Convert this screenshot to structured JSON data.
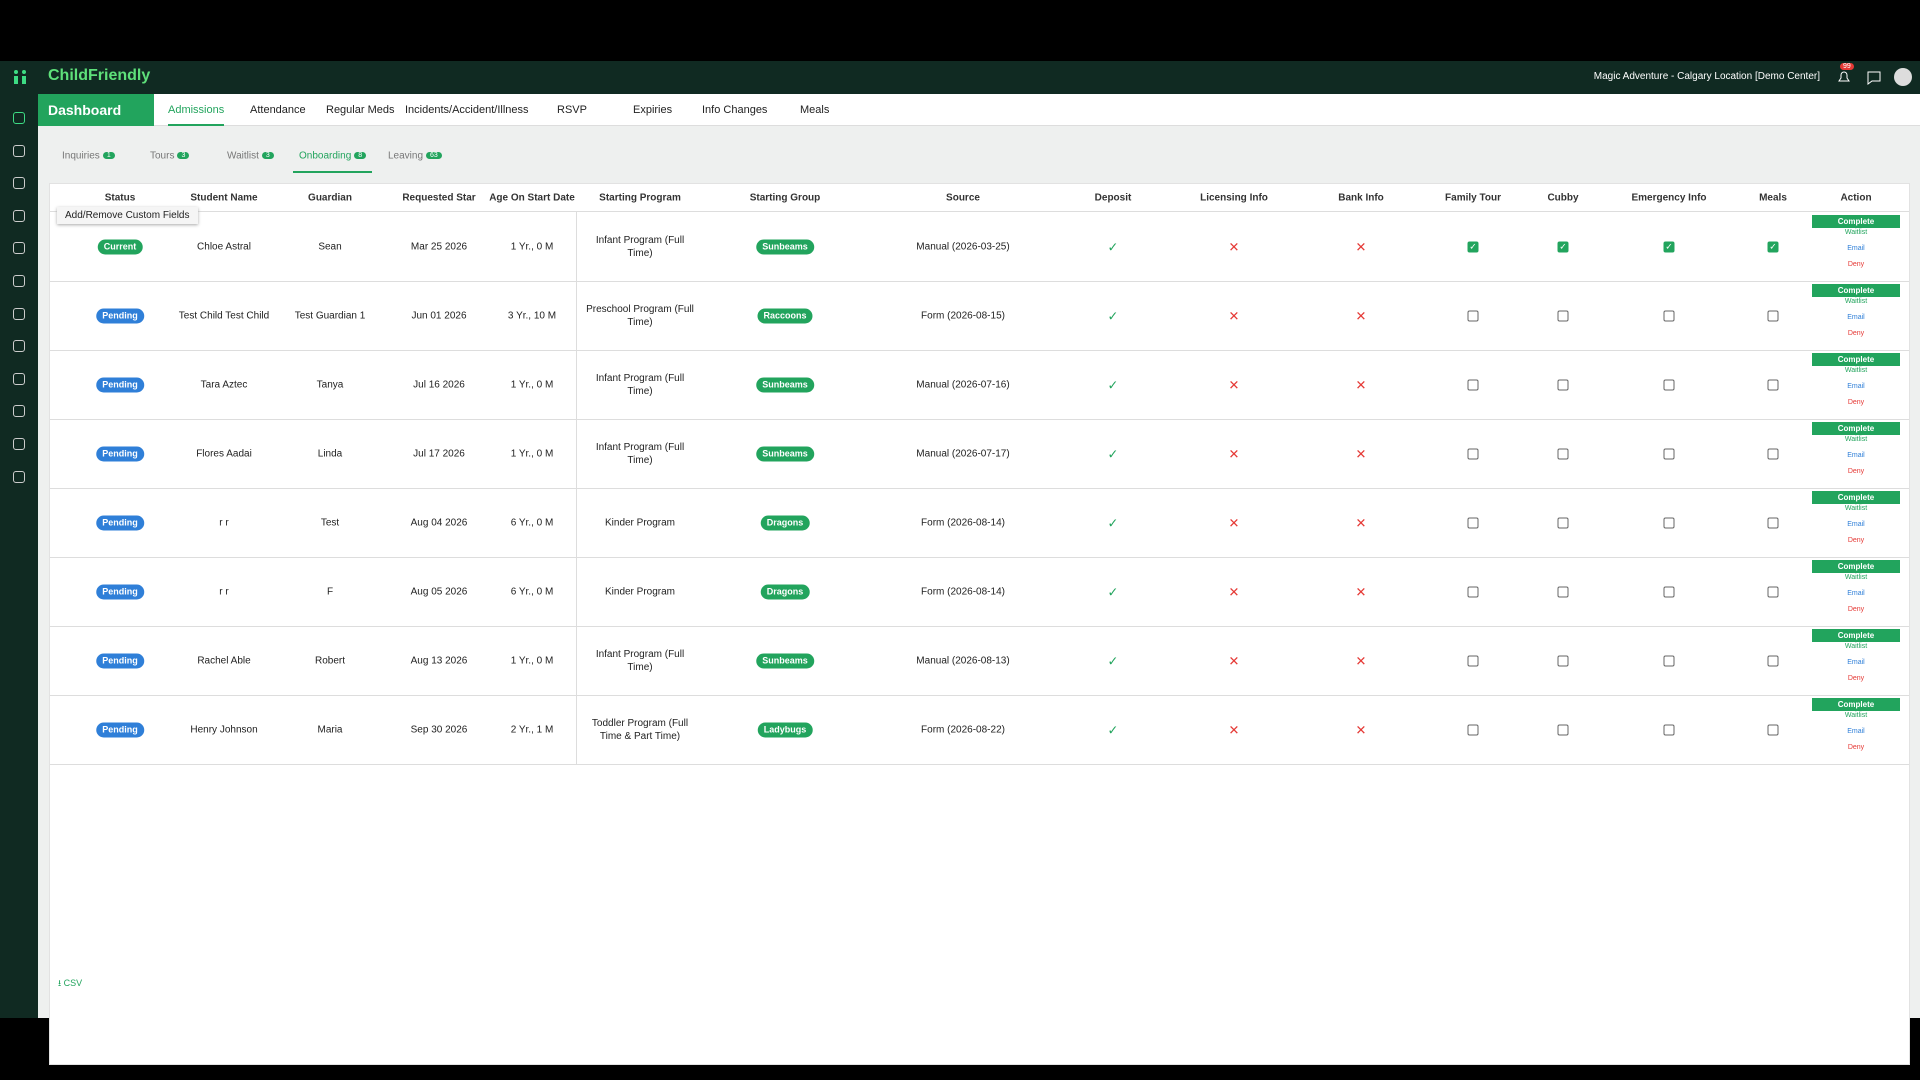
{
  "header": {
    "brand": "ChildFriendly",
    "location": "Magic Adventure - Calgary Location [Demo Center]",
    "notifications": "99"
  },
  "nav": {
    "dashboard": "Dashboard",
    "tabs": [
      "Admissions",
      "Attendance",
      "Regular Meds",
      "Incidents/Accident/Illness",
      "RSVP",
      "Expiries",
      "Info Changes",
      "Meals"
    ],
    "active": 0
  },
  "subtabs": {
    "items": [
      {
        "label": "Inquiries",
        "count": "1"
      },
      {
        "label": "Tours",
        "count": "3"
      },
      {
        "label": "Waitlist",
        "count": "3"
      },
      {
        "label": "Onboarding",
        "count": "8"
      },
      {
        "label": "Leaving",
        "count": "63"
      }
    ],
    "active": 3
  },
  "tooltip": "Add/Remove Custom Fields",
  "table": {
    "columns": [
      "Status",
      "Student Name",
      "Guardian",
      "Requested Star",
      "Age On Start Date",
      "Starting Program",
      "Starting Group",
      "Source",
      "Deposit",
      "Licensing Info",
      "Bank Info",
      "Family Tour",
      "Cubby",
      "Emergency Info",
      "Meals",
      "Action"
    ],
    "actions": [
      "Complete",
      "Waitlist",
      "Email",
      "Deny"
    ],
    "rows": [
      {
        "status": "Current",
        "badge_color": "#22a45d",
        "student": "Chloe Astral",
        "guardian": "Sean",
        "start": "Mar 25 2026",
        "age": "1 Yr., 0 M",
        "program": "Infant Program (Full Time)",
        "group": "Sunbeams",
        "source": "Manual (2026-03-25)",
        "deposit": true,
        "licensing": false,
        "bank": false,
        "family_tour": true,
        "cubby": true,
        "emergency": true,
        "meals": true
      },
      {
        "status": "Pending",
        "badge_color": "#2f7fd8",
        "student": "Test Child Test Child",
        "guardian": "Test Guardian 1",
        "start": "Jun 01 2026",
        "age": "3 Yr., 10 M",
        "program": "Preschool Program (Full Time)",
        "group": "Raccoons",
        "source": "Form (2026-08-15)",
        "deposit": true,
        "licensing": false,
        "bank": false,
        "family_tour": false,
        "cubby": false,
        "emergency": false,
        "meals": false
      },
      {
        "status": "Pending",
        "badge_color": "#2f7fd8",
        "student": "Tara Aztec",
        "guardian": "Tanya",
        "start": "Jul 16 2026",
        "age": "1 Yr., 0 M",
        "program": "Infant Program (Full Time)",
        "group": "Sunbeams",
        "source": "Manual (2026-07-16)",
        "deposit": true,
        "licensing": false,
        "bank": false,
        "family_tour": false,
        "cubby": false,
        "emergency": false,
        "meals": false
      },
      {
        "status": "Pending",
        "badge_color": "#2f7fd8",
        "student": "Flores Aadai",
        "guardian": "Linda",
        "start": "Jul 17 2026",
        "age": "1 Yr., 0 M",
        "program": "Infant Program (Full Time)",
        "group": "Sunbeams",
        "source": "Manual (2026-07-17)",
        "deposit": true,
        "licensing": false,
        "bank": false,
        "family_tour": false,
        "cubby": false,
        "emergency": false,
        "meals": false
      },
      {
        "status": "Pending",
        "badge_color": "#2f7fd8",
        "student": "r r",
        "guardian": "Test",
        "start": "Aug 04 2026",
        "age": "6 Yr., 0 M",
        "program": "Kinder Program",
        "group": "Dragons",
        "source": "Form (2026-08-14)",
        "deposit": true,
        "licensing": false,
        "bank": false,
        "family_tour": false,
        "cubby": false,
        "emergency": false,
        "meals": false
      },
      {
        "status": "Pending",
        "badge_color": "#2f7fd8",
        "student": "r r",
        "guardian": "F",
        "start": "Aug 05 2026",
        "age": "6 Yr., 0 M",
        "program": "Kinder Program",
        "group": "Dragons",
        "source": "Form (2026-08-14)",
        "deposit": true,
        "licensing": false,
        "bank": false,
        "family_tour": false,
        "cubby": false,
        "emergency": false,
        "meals": false
      },
      {
        "status": "Pending",
        "badge_color": "#2f7fd8",
        "student": "Rachel Able",
        "guardian": "Robert",
        "start": "Aug 13 2026",
        "age": "1 Yr., 0 M",
        "program": "Infant Program (Full Time)",
        "group": "Sunbeams",
        "source": "Manual (2026-08-13)",
        "deposit": true,
        "licensing": false,
        "bank": false,
        "family_tour": false,
        "cubby": false,
        "emergency": false,
        "meals": false
      },
      {
        "status": "Pending",
        "badge_color": "#2f7fd8",
        "student": "Henry Johnson",
        "guardian": "Maria",
        "start": "Sep 30 2026",
        "age": "2 Yr., 1 M",
        "program": "Toddler Program (Full Time & Part Time)",
        "group": "Ladybugs",
        "source": "Form (2026-08-22)",
        "deposit": true,
        "licensing": false,
        "bank": false,
        "family_tour": false,
        "cubby": false,
        "emergency": false,
        "meals": false
      }
    ]
  },
  "footer": {
    "csv": "CSV"
  }
}
